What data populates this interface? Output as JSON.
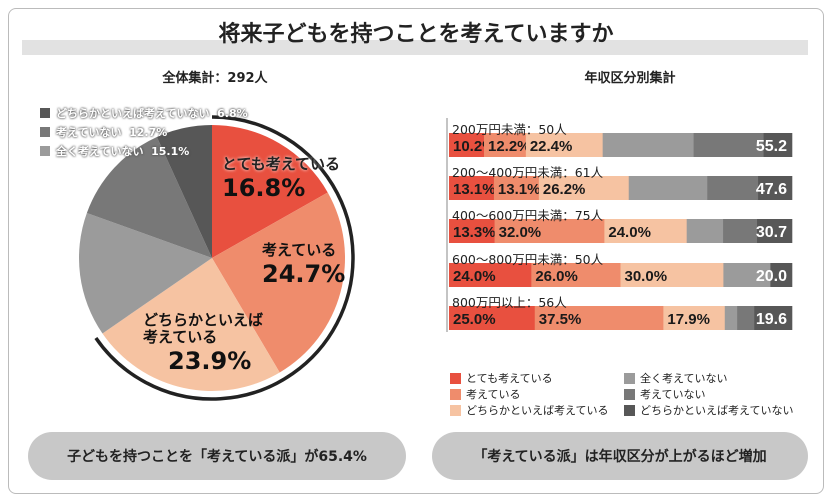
{
  "title": "将来子どもを持つことを考えていますか",
  "colors": {
    "very_considering": "#e8503f",
    "considering": "#ef8c6c",
    "somewhat_considering": "#f6c3a2",
    "not_at_all": "#9b9b9b",
    "not_considering": "#787878",
    "somewhat_not": "#575757"
  },
  "chart_data": [
    {
      "type": "pie",
      "title": "全体集計：292人",
      "slices": [
        {
          "label": "とても考えている",
          "value": 16.8,
          "display": "16.8%",
          "color_key": "very_considering"
        },
        {
          "label": "考えている",
          "value": 24.7,
          "display": "24.7%",
          "color_key": "considering"
        },
        {
          "label": "どちらかといえば考えている",
          "value": 23.9,
          "display": "23.9%",
          "color_key": "somewhat_considering"
        },
        {
          "label": "全く考えていない",
          "value": 15.1,
          "display": "15.1%",
          "color_key": "not_at_all"
        },
        {
          "label": "考えていない",
          "value": 12.7,
          "display": "12.7%",
          "color_key": "not_considering"
        },
        {
          "label": "どちらかといえば考えていない",
          "value": 6.8,
          "display": "6.8%",
          "color_key": "somewhat_not"
        }
      ],
      "pie_labels": {
        "very": "とても考えている",
        "considering": "考えている",
        "somewhat_line1": "どちらかといえば",
        "somewhat_line2": "考えている"
      },
      "legend": [
        {
          "label": "どちらかといえば考えていない",
          "value": "6.8%",
          "color_key": "somewhat_not"
        },
        {
          "label": "考えていない",
          "value": "12.7%",
          "color_key": "not_considering"
        },
        {
          "label": "全く考えていない",
          "value": "15.1%",
          "color_key": "not_at_all"
        }
      ]
    },
    {
      "type": "bar",
      "orientation": "horizontal-stacked-100",
      "title": "年収区分別集計",
      "categories": [
        "200万円未満：50人",
        "200～400万円未満：61人",
        "400～600万円未満：75人",
        "600～800万円未満：50人",
        "800万円以上：56人"
      ],
      "series": [
        {
          "name": "とても考えている",
          "color_key": "very_considering",
          "values": [
            10.2,
            13.1,
            13.3,
            24.0,
            25.0
          ]
        },
        {
          "name": "考えている",
          "color_key": "considering",
          "values": [
            12.2,
            13.1,
            32.0,
            26.0,
            37.5
          ]
        },
        {
          "name": "どちらかといえば考えている",
          "color_key": "somewhat_considering",
          "values": [
            22.4,
            26.2,
            24.0,
            30.0,
            17.9
          ]
        },
        {
          "name": "全く考えていない",
          "color_key": "not_at_all",
          "values": [
            26.5,
            22.9,
            10.6,
            13.7,
            3.6
          ]
        },
        {
          "name": "考えていない",
          "color_key": "not_considering",
          "values": [
            20.4,
            14.8,
            9.9,
            0,
            5.0
          ]
        },
        {
          "name": "どちらかといえば考えていない",
          "color_key": "somewhat_not",
          "values": [
            8.3,
            9.9,
            10.2,
            6.3,
            11.0
          ]
        }
      ],
      "not_considering_totals": [
        "55.2",
        "47.6",
        "30.7",
        "20.0",
        "19.6"
      ],
      "legend": [
        {
          "label": "とても考えている",
          "color_key": "very_considering"
        },
        {
          "label": "考えている",
          "color_key": "considering"
        },
        {
          "label": "どちらかといえば考えている",
          "color_key": "somewhat_considering"
        },
        {
          "label": "全く考えていない",
          "color_key": "not_at_all"
        },
        {
          "label": "考えていない",
          "color_key": "not_considering"
        },
        {
          "label": "どちらかといえば考えていない",
          "color_key": "somewhat_not"
        }
      ]
    }
  ],
  "summary_left": "子どもを持つことを「考えている派」が65.4%",
  "summary_right": "「考えている派」は年収区分が上がるほど増加"
}
